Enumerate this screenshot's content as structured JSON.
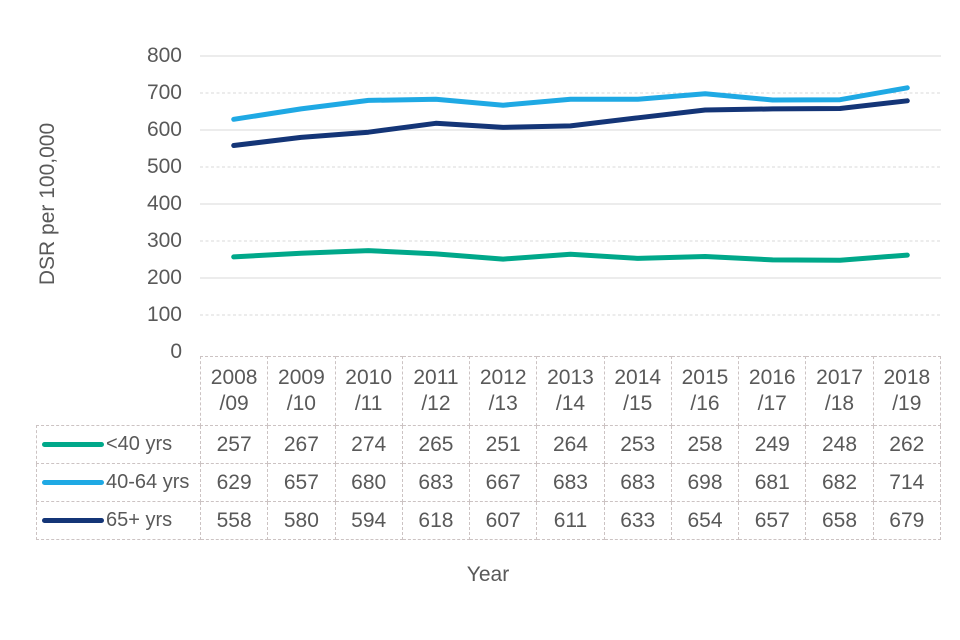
{
  "chart": {
    "y_axis_title": "DSR per 100,000",
    "x_axis_title": "Year"
  },
  "chart_data": {
    "type": "line",
    "title": "",
    "xlabel": "Year",
    "ylabel": "DSR per 100,000",
    "ylim": [
      0,
      800
    ],
    "y_tick_step": 100,
    "y_tick_labels": [
      "800",
      "700",
      "600",
      "500",
      "400",
      "300",
      "200",
      "100",
      "0"
    ],
    "grid": "horizontal light-gray dashed",
    "legend_position": "left column of data table below chart",
    "categories": [
      "2008/09",
      "2009/10",
      "2010/11",
      "2011/12",
      "2012/13",
      "2013/14",
      "2014/15",
      "2015/16",
      "2016/17",
      "2017/18",
      "2018/19"
    ],
    "series": [
      {
        "name": "<40 yrs",
        "color": "#00A88A",
        "values": [
          257,
          267,
          274,
          265,
          251,
          264,
          253,
          258,
          249,
          248,
          262
        ]
      },
      {
        "name": "40-64 yrs",
        "color": "#1FA9E4",
        "values": [
          629,
          657,
          680,
          683,
          667,
          683,
          683,
          698,
          681,
          682,
          714
        ]
      },
      {
        "name": "65+ yrs",
        "color": "#143577",
        "values": [
          558,
          580,
          594,
          618,
          607,
          611,
          633,
          654,
          657,
          658,
          679
        ]
      }
    ]
  },
  "colors": {
    "text": "#595959",
    "gridline": "#d9d9d9",
    "table_border": "#ccc3c3",
    "background": "#ffffff"
  }
}
